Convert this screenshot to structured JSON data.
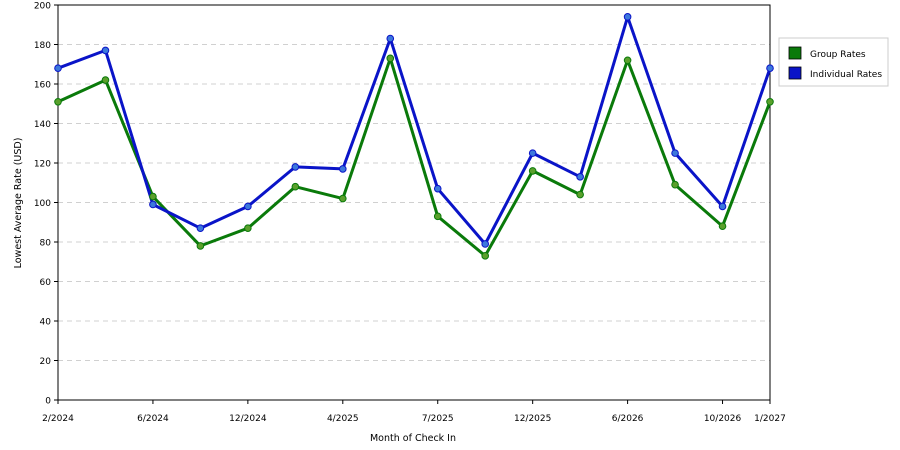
{
  "chart_data": {
    "type": "line",
    "xlabel": "Month of Check In",
    "ylabel": "Lowest Average Rate (USD)",
    "ylim": [
      0,
      200
    ],
    "yticks": [
      0,
      20,
      40,
      60,
      80,
      100,
      120,
      140,
      160,
      180,
      200
    ],
    "grid": "horizontal-dashed",
    "legend_position": "right",
    "x_ticks": [
      "2/2024",
      "6/2024",
      "12/2024",
      "4/2025",
      "7/2025",
      "12/2025",
      "6/2026",
      "10/2026",
      "1/2027"
    ],
    "x_tick_index": [
      0,
      2,
      4,
      6,
      8,
      10,
      12,
      14,
      15
    ],
    "series": [
      {
        "name": "Group Rates",
        "color": "#0a7a0a",
        "marker_color": "#5aa02c",
        "values": [
          151,
          162,
          103,
          78,
          87,
          108,
          102,
          173,
          93,
          73,
          116,
          104,
          172,
          109,
          88,
          151
        ]
      },
      {
        "name": "Individual Rates",
        "color": "#0a14c8",
        "marker_color": "#3c78dc",
        "values": [
          168,
          177,
          99,
          87,
          98,
          118,
          117,
          183,
          107,
          79,
          125,
          113,
          194,
          125,
          98,
          168
        ]
      }
    ]
  }
}
